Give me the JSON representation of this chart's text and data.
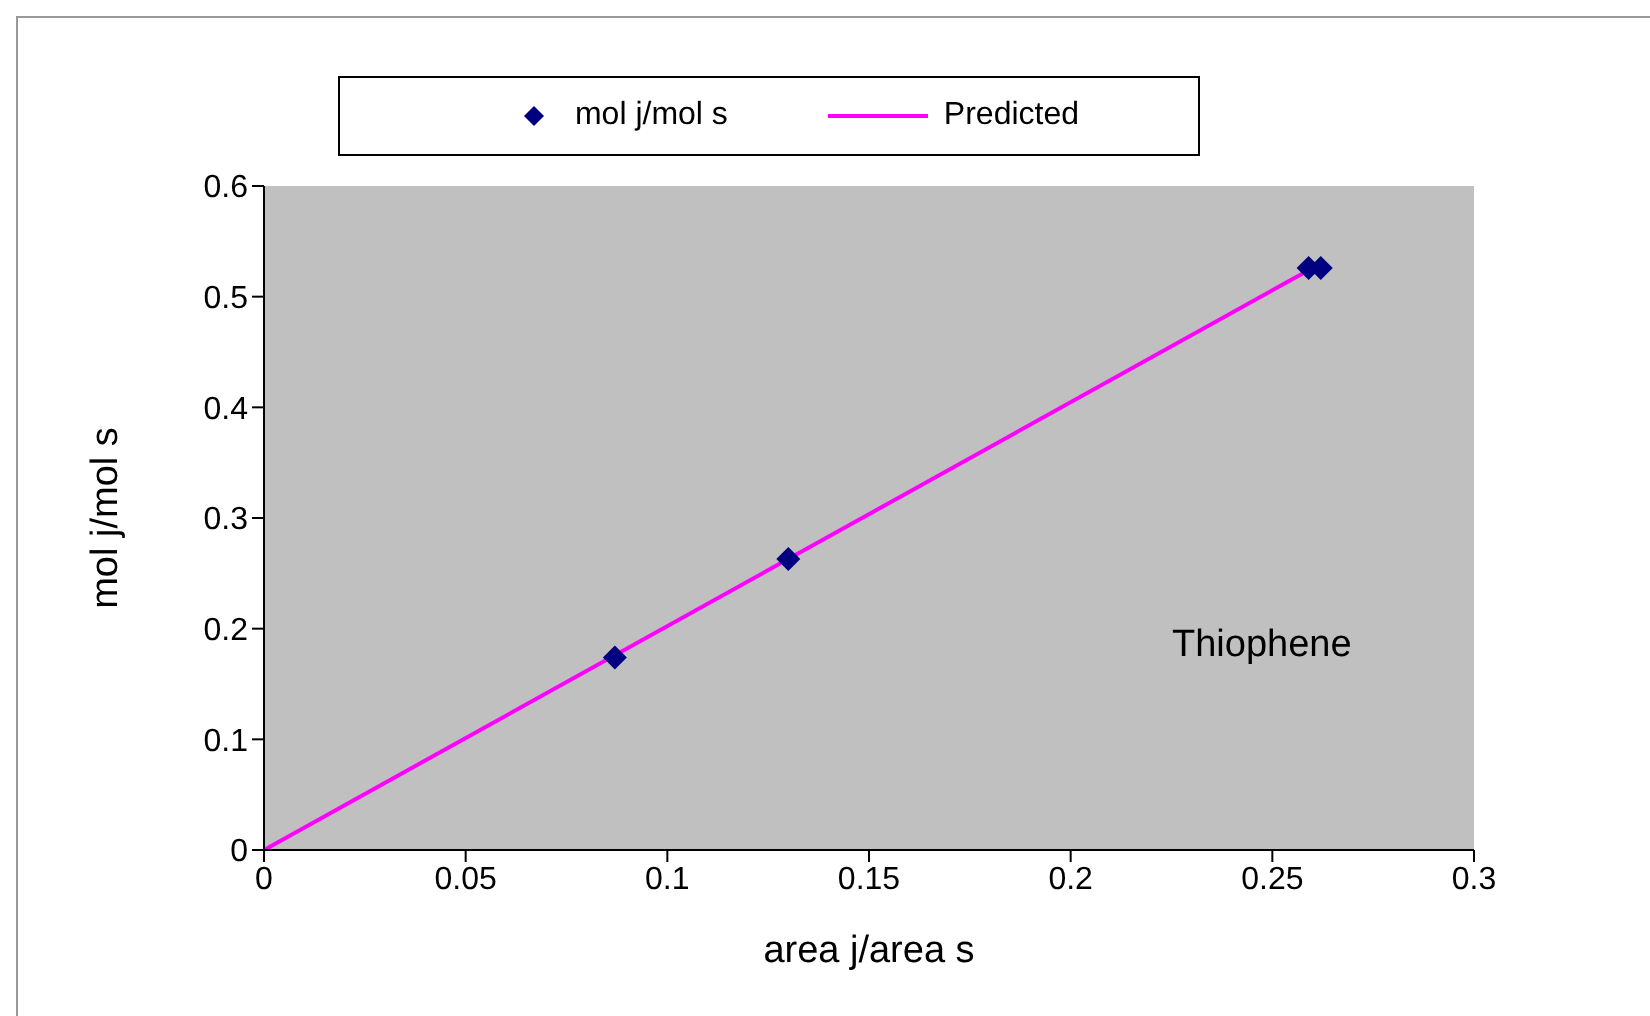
{
  "chart_data": {
    "type": "scatter",
    "xlabel": "area j/area s",
    "ylabel": "mol j/mol s",
    "annotations": [
      "Thiophene"
    ],
    "series": [
      {
        "name": "mol j/mol s",
        "color": "#000080",
        "marker": "diamond",
        "x": [
          0.087,
          0.13,
          0.259,
          0.262
        ],
        "values": [
          0.174,
          0.263,
          0.526,
          0.526
        ]
      },
      {
        "name": "Predicted",
        "type": "line",
        "color": "#ff00ff",
        "marker": "none",
        "x": [
          0,
          0.26
        ],
        "values": [
          0,
          0.526
        ]
      }
    ],
    "xlim": [
      0,
      0.3
    ],
    "xticks": [
      0,
      0.05,
      0.1,
      0.15,
      0.2,
      0.25,
      0.3
    ],
    "ylim": [
      0,
      0.6
    ],
    "yticks": [
      0,
      0.1,
      0.2,
      0.3,
      0.4,
      0.5,
      0.6
    ],
    "grid": false,
    "legend": "top"
  }
}
